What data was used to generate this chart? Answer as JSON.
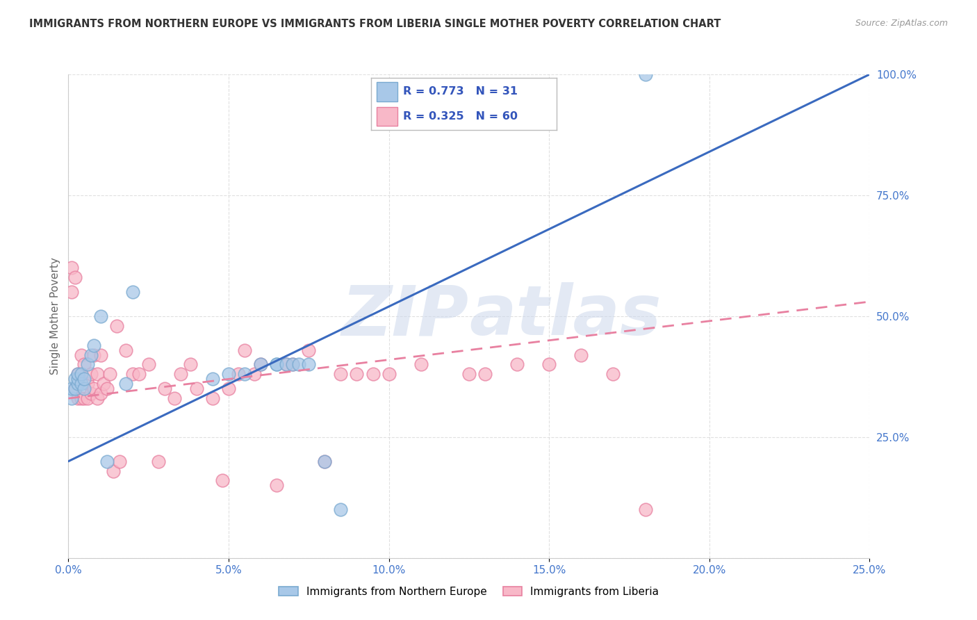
{
  "title": "IMMIGRANTS FROM NORTHERN EUROPE VS IMMIGRANTS FROM LIBERIA SINGLE MOTHER POVERTY CORRELATION CHART",
  "source": "Source: ZipAtlas.com",
  "ylabel": "Single Mother Poverty",
  "xlim": [
    0,
    0.25
  ],
  "ylim": [
    0,
    1.0
  ],
  "xticks": [
    0.0,
    0.05,
    0.1,
    0.15,
    0.2,
    0.25
  ],
  "yticks": [
    0.0,
    0.25,
    0.5,
    0.75,
    1.0
  ],
  "series1_name": "Immigrants from Northern Europe",
  "series1_color": "#a8c8e8",
  "series1_edge": "#7aaad0",
  "series1_line_color": "#3a6abf",
  "series1_R": "0.773",
  "series1_N": "31",
  "series1_x": [
    0.001,
    0.001,
    0.002,
    0.002,
    0.003,
    0.003,
    0.003,
    0.004,
    0.004,
    0.005,
    0.005,
    0.006,
    0.007,
    0.008,
    0.01,
    0.012,
    0.018,
    0.02,
    0.045,
    0.05,
    0.055,
    0.06,
    0.065,
    0.065,
    0.068,
    0.07,
    0.072,
    0.075,
    0.08,
    0.085,
    0.18
  ],
  "series1_y": [
    0.33,
    0.35,
    0.35,
    0.37,
    0.36,
    0.37,
    0.38,
    0.36,
    0.38,
    0.35,
    0.37,
    0.4,
    0.42,
    0.44,
    0.5,
    0.2,
    0.36,
    0.55,
    0.37,
    0.38,
    0.38,
    0.4,
    0.4,
    0.4,
    0.4,
    0.4,
    0.4,
    0.4,
    0.2,
    0.1,
    1.0
  ],
  "series1_trend_x": [
    0.0,
    0.25
  ],
  "series1_trend_y": [
    0.2,
    1.0
  ],
  "series2_name": "Immigrants from Liberia",
  "series2_color": "#f8b8c8",
  "series2_edge": "#e880a0",
  "series2_line_color": "#e880a0",
  "series2_R": "0.325",
  "series2_N": "60",
  "series2_x": [
    0.001,
    0.001,
    0.002,
    0.002,
    0.003,
    0.003,
    0.004,
    0.004,
    0.005,
    0.005,
    0.006,
    0.006,
    0.007,
    0.007,
    0.008,
    0.008,
    0.009,
    0.009,
    0.01,
    0.01,
    0.011,
    0.012,
    0.013,
    0.014,
    0.015,
    0.016,
    0.018,
    0.02,
    0.022,
    0.025,
    0.028,
    0.03,
    0.033,
    0.035,
    0.038,
    0.04,
    0.045,
    0.048,
    0.05,
    0.053,
    0.055,
    0.058,
    0.06,
    0.065,
    0.068,
    0.07,
    0.075,
    0.08,
    0.085,
    0.09,
    0.095,
    0.1,
    0.11,
    0.125,
    0.13,
    0.14,
    0.15,
    0.16,
    0.17,
    0.18
  ],
  "series2_y": [
    0.55,
    0.6,
    0.35,
    0.58,
    0.33,
    0.38,
    0.33,
    0.42,
    0.33,
    0.4,
    0.33,
    0.36,
    0.34,
    0.38,
    0.35,
    0.42,
    0.33,
    0.38,
    0.34,
    0.42,
    0.36,
    0.35,
    0.38,
    0.18,
    0.48,
    0.2,
    0.43,
    0.38,
    0.38,
    0.4,
    0.2,
    0.35,
    0.33,
    0.38,
    0.4,
    0.35,
    0.33,
    0.16,
    0.35,
    0.38,
    0.43,
    0.38,
    0.4,
    0.15,
    0.4,
    0.4,
    0.43,
    0.2,
    0.38,
    0.38,
    0.38,
    0.38,
    0.4,
    0.38,
    0.38,
    0.4,
    0.4,
    0.42,
    0.38,
    0.1
  ],
  "series2_trend_x": [
    0.0,
    0.25
  ],
  "series2_trend_y": [
    0.33,
    0.53
  ],
  "watermark_zip": "ZIP",
  "watermark_atlas": "atlas",
  "background_color": "#ffffff",
  "grid_color": "#dddddd",
  "title_color": "#333333",
  "axis_label_color": "#666666",
  "tick_label_color": "#4477cc",
  "legend_R_color": "#3355bb",
  "legend_border_color": "#bbbbbb"
}
